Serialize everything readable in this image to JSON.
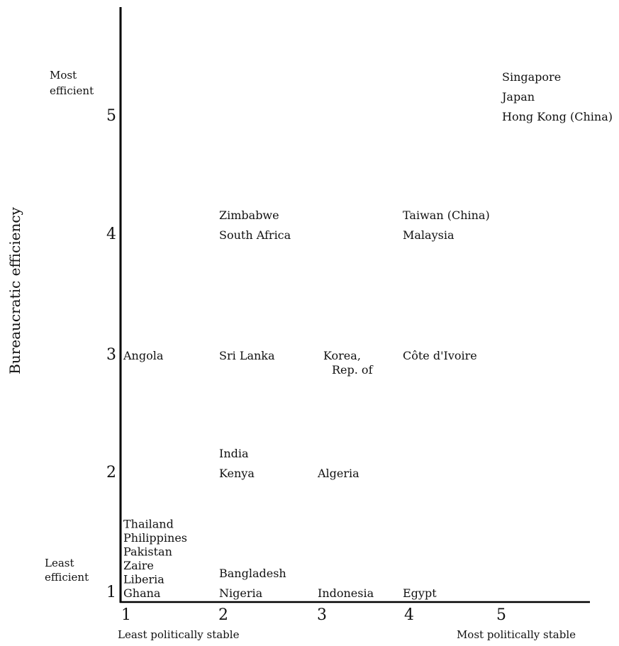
{
  "chart_data": {
    "type": "scatter",
    "ylabel": "Bureaucratic efficiency",
    "x_low_label": "Least politically stable",
    "x_high_label": "Most politically stable",
    "y_high_label": [
      "Most",
      "efficient"
    ],
    "y_low_label": [
      "Least",
      "efficient"
    ],
    "xticks": [
      "1",
      "2",
      "3",
      "4",
      "5"
    ],
    "yticks": [
      "1",
      "2",
      "3",
      "4",
      "5"
    ],
    "xlim": [
      1,
      6.1
    ],
    "ylim": [
      1,
      5.5
    ],
    "points": [
      {
        "x": 1,
        "y": 1,
        "labels": [
          "Thailand",
          "Philippines",
          "Pakistan",
          "Zaire",
          "Liberia",
          "Ghana"
        ]
      },
      {
        "x": 2,
        "y": 1,
        "labels": [
          "Bangladesh",
          "Nigeria"
        ]
      },
      {
        "x": 3,
        "y": 1,
        "labels": [
          "Indonesia"
        ]
      },
      {
        "x": 4,
        "y": 1,
        "labels": [
          "Egypt"
        ]
      },
      {
        "x": 2,
        "y": 2,
        "labels": [
          "India",
          "Kenya"
        ]
      },
      {
        "x": 3,
        "y": 2,
        "labels": [
          "Algeria"
        ]
      },
      {
        "x": 1,
        "y": 3,
        "labels": [
          "Angola"
        ]
      },
      {
        "x": 2,
        "y": 3,
        "labels": [
          "Sri Lanka"
        ]
      },
      {
        "x": 3,
        "y": 3,
        "labels": [
          "Korea,",
          "Rep. of"
        ]
      },
      {
        "x": 4,
        "y": 3,
        "labels": [
          "Côte d'Ivoire"
        ]
      },
      {
        "x": 2,
        "y": 4,
        "labels": [
          "Zimbabwe",
          "South Africa"
        ]
      },
      {
        "x": 4,
        "y": 4,
        "labels": [
          "Taiwan (China)",
          "Malaysia"
        ]
      },
      {
        "x": 5,
        "y": 5,
        "labels": [
          "Singapore",
          "Japan",
          "Hong Kong (China)"
        ]
      }
    ]
  }
}
